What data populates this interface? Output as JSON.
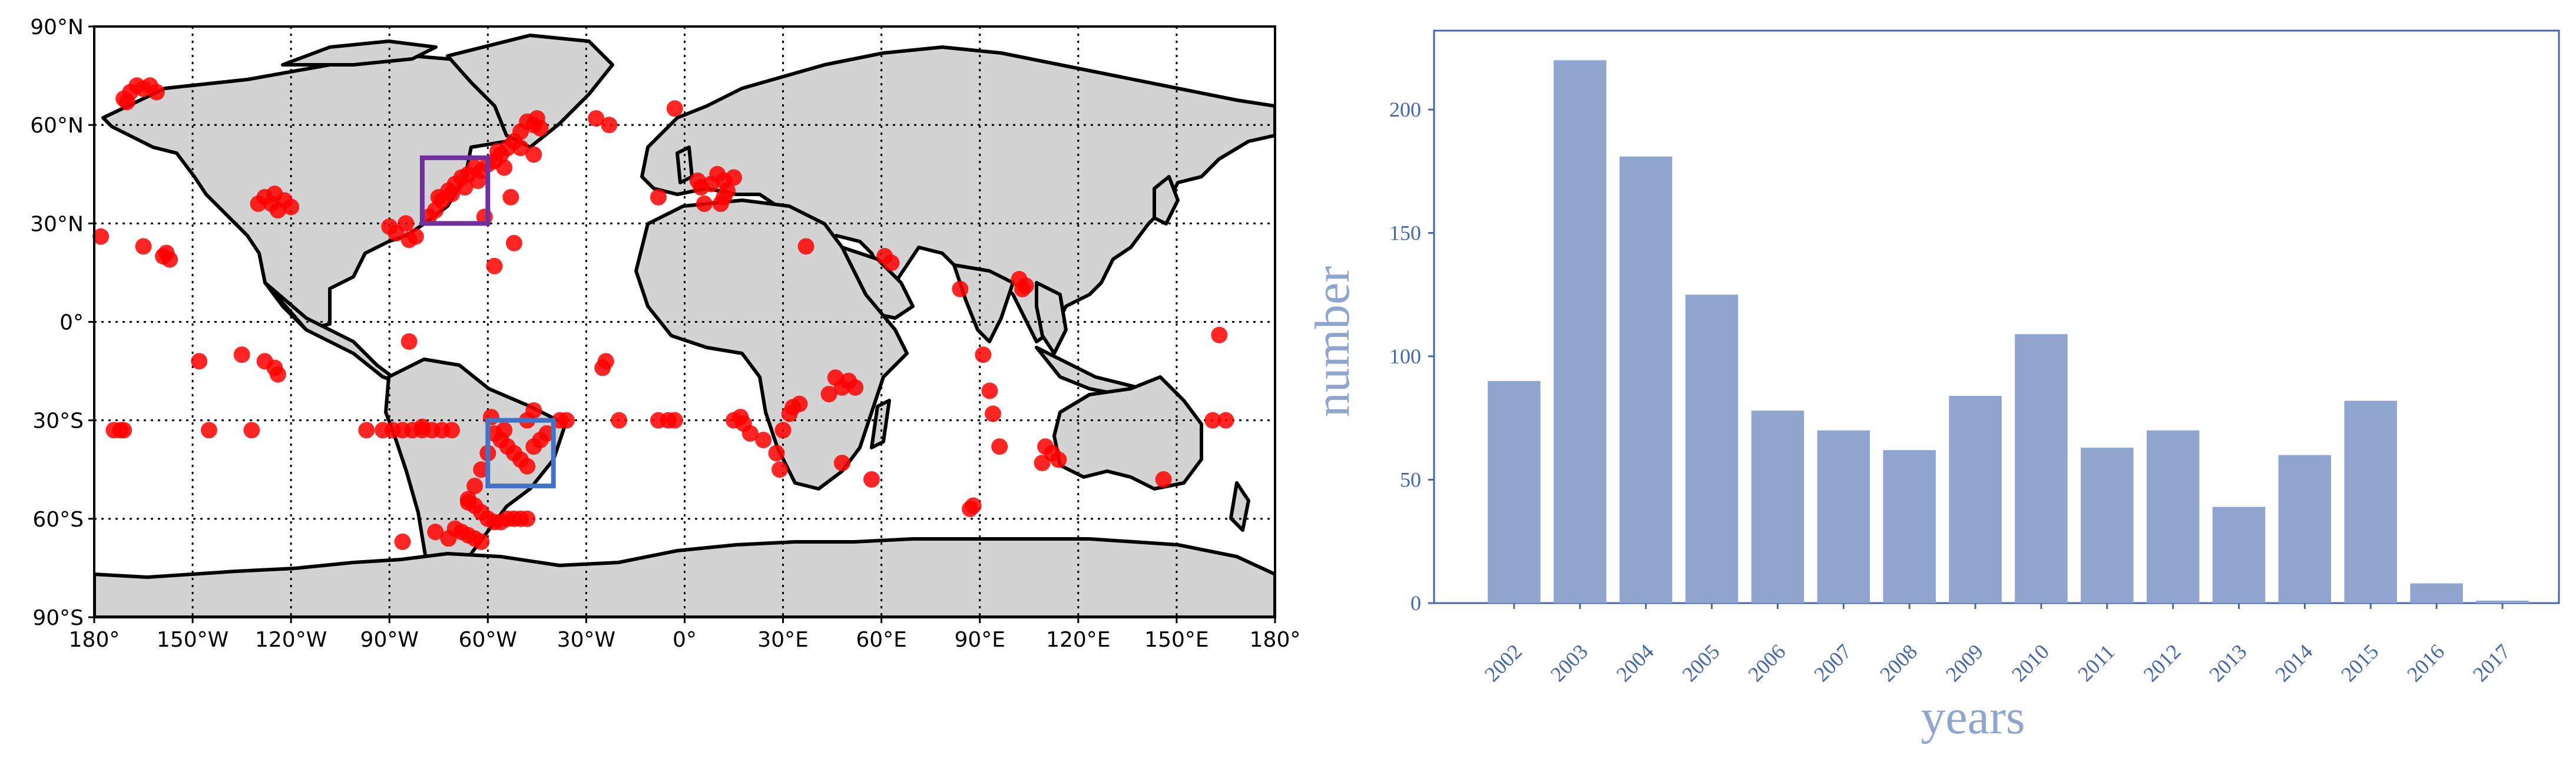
{
  "colors": {
    "land": "#d3d3d3",
    "coast": "#000000",
    "points": "#ff0000",
    "purple_box": "#7030a0",
    "blue_box": "#4472c4",
    "bar_fill": "#8fa5cf",
    "bar_axis": "#4466aa",
    "bar_label": "#8fa5cf"
  },
  "chart_data": [
    {
      "type": "scatter",
      "projection": "equirectangular",
      "grid": true,
      "x_ticks": [
        "180°",
        "150°W",
        "120°W",
        "90°W",
        "60°W",
        "30°W",
        "0°",
        "30°E",
        "60°E",
        "90°E",
        "120°E",
        "150°E",
        "180°"
      ],
      "y_ticks": [
        "90°N",
        "60°N",
        "30°N",
        "0°",
        "30°S",
        "60°S",
        "90°S"
      ],
      "xlim": [
        -180,
        180
      ],
      "ylim": [
        -90,
        90
      ],
      "boxes": [
        {
          "color": "purple",
          "lon": [
            -80,
            -60
          ],
          "lat": [
            30,
            50
          ]
        },
        {
          "color": "blue",
          "lon": [
            -60,
            -40
          ],
          "lat": [
            -50,
            -30
          ]
        }
      ],
      "points_lonlat": [
        [
          -171,
          68
        ],
        [
          -169,
          70
        ],
        [
          -167,
          72
        ],
        [
          -165,
          71
        ],
        [
          -163,
          72
        ],
        [
          -161,
          70
        ],
        [
          -170,
          67
        ],
        [
          -178,
          26
        ],
        [
          -165,
          23
        ],
        [
          -158,
          21
        ],
        [
          -157,
          19
        ],
        [
          -159,
          20
        ],
        [
          -130,
          36
        ],
        [
          -128,
          38
        ],
        [
          -126,
          36
        ],
        [
          -124,
          34
        ],
        [
          -122,
          37
        ],
        [
          -120,
          35
        ],
        [
          -125,
          39
        ],
        [
          -90,
          29
        ],
        [
          -88,
          27
        ],
        [
          -84,
          25
        ],
        [
          -82,
          26
        ],
        [
          -85,
          30
        ],
        [
          -78,
          32
        ],
        [
          -76,
          34
        ],
        [
          -74,
          37
        ],
        [
          -72,
          40
        ],
        [
          -70,
          42
        ],
        [
          -68,
          44
        ],
        [
          -66,
          45
        ],
        [
          -64,
          47
        ],
        [
          -62,
          46
        ],
        [
          -60,
          48
        ],
        [
          -58,
          49
        ],
        [
          -56,
          51
        ],
        [
          -54,
          53
        ],
        [
          -52,
          55
        ],
        [
          -50,
          58
        ],
        [
          -48,
          61
        ],
        [
          -46,
          60
        ],
        [
          -44,
          59
        ],
        [
          -55,
          47
        ],
        [
          -75,
          38
        ],
        [
          -71,
          39
        ],
        [
          -67,
          41
        ],
        [
          -63,
          43
        ],
        [
          -61,
          32
        ],
        [
          -57,
          52
        ],
        [
          -50,
          53
        ],
        [
          -46,
          51
        ],
        [
          -53,
          38
        ],
        [
          -52,
          24
        ],
        [
          -58,
          17
        ],
        [
          -45,
          62
        ],
        [
          -27,
          62
        ],
        [
          -23,
          60
        ],
        [
          -3,
          65
        ],
        [
          -8,
          38
        ],
        [
          5,
          41
        ],
        [
          8,
          42
        ],
        [
          10,
          45
        ],
        [
          12,
          43
        ],
        [
          13,
          40
        ],
        [
          15,
          44
        ],
        [
          6,
          36
        ],
        [
          12,
          38
        ],
        [
          4,
          43
        ],
        [
          11,
          36
        ],
        [
          -135,
          -10
        ],
        [
          -128,
          -12
        ],
        [
          -125,
          -14
        ],
        [
          -124,
          -16
        ],
        [
          -148,
          -12
        ],
        [
          -174,
          -33
        ],
        [
          -172,
          -33
        ],
        [
          -171,
          -33
        ],
        [
          -145,
          -33
        ],
        [
          -132,
          -33
        ],
        [
          -97,
          -33
        ],
        [
          -92,
          -33
        ],
        [
          -89,
          -33
        ],
        [
          -86,
          -33
        ],
        [
          -83,
          -33
        ],
        [
          -80,
          -33
        ],
        [
          -77,
          -33
        ],
        [
          -74,
          -33
        ],
        [
          -71,
          -33
        ],
        [
          -80,
          -32
        ],
        [
          -84,
          -6
        ],
        [
          -58,
          -34
        ],
        [
          -56,
          -36
        ],
        [
          -54,
          -38
        ],
        [
          -52,
          -40
        ],
        [
          -50,
          -42
        ],
        [
          -48,
          -44
        ],
        [
          -46,
          -38
        ],
        [
          -44,
          -36
        ],
        [
          -42,
          -34
        ],
        [
          -60,
          -40
        ],
        [
          -62,
          -45
        ],
        [
          -64,
          -50
        ],
        [
          -66,
          -54
        ],
        [
          -59,
          -29
        ],
        [
          -55,
          -33
        ],
        [
          -48,
          -30
        ],
        [
          -46,
          -27
        ],
        [
          -38,
          -30
        ],
        [
          -36,
          -30
        ],
        [
          -66,
          -55
        ],
        [
          -64,
          -56
        ],
        [
          -62,
          -58
        ],
        [
          -60,
          -60
        ],
        [
          -58,
          -61
        ],
        [
          -56,
          -61
        ],
        [
          -54,
          -60
        ],
        [
          -52,
          -60
        ],
        [
          -50,
          -60
        ],
        [
          -48,
          -60
        ],
        [
          -70,
          -63
        ],
        [
          -68,
          -64
        ],
        [
          -66,
          -65
        ],
        [
          -64,
          -66
        ],
        [
          -62,
          -67
        ],
        [
          -72,
          -66
        ],
        [
          -86,
          -67
        ],
        [
          -76,
          -64
        ],
        [
          -24,
          -12
        ],
        [
          -25,
          -14
        ],
        [
          -20,
          -30
        ],
        [
          -8,
          -30
        ],
        [
          -5,
          -30
        ],
        [
          -3,
          -30
        ],
        [
          17,
          -29
        ],
        [
          18,
          -31
        ],
        [
          20,
          -34
        ],
        [
          15,
          -30
        ],
        [
          24,
          -36
        ],
        [
          30,
          -33
        ],
        [
          32,
          -28
        ],
        [
          33,
          -26
        ],
        [
          35,
          -25
        ],
        [
          29,
          -45
        ],
        [
          28,
          -40
        ],
        [
          46,
          -17
        ],
        [
          44,
          -22
        ],
        [
          48,
          -20
        ],
        [
          52,
          -20
        ],
        [
          50,
          -18
        ],
        [
          48,
          -43
        ],
        [
          57,
          -48
        ],
        [
          37,
          23
        ],
        [
          61,
          20
        ],
        [
          63,
          18
        ],
        [
          84,
          10
        ],
        [
          102,
          13
        ],
        [
          104,
          11
        ],
        [
          103,
          10
        ],
        [
          91,
          -10
        ],
        [
          93,
          -21
        ],
        [
          94,
          -28
        ],
        [
          96,
          -38
        ],
        [
          88,
          -56
        ],
        [
          87,
          -57
        ],
        [
          110,
          -38
        ],
        [
          112,
          -40
        ],
        [
          114,
          -42
        ],
        [
          109,
          -43
        ],
        [
          146,
          -48
        ],
        [
          163,
          -4
        ],
        [
          165,
          -30
        ],
        [
          161,
          -30
        ]
      ]
    },
    {
      "type": "bar",
      "categories": [
        "2002",
        "2003",
        "2004",
        "2005",
        "2006",
        "2007",
        "2008",
        "2009",
        "2010",
        "2011",
        "2012",
        "2013",
        "2014",
        "2015",
        "2016",
        "2017"
      ],
      "values": [
        90,
        220,
        181,
        125,
        78,
        70,
        62,
        84,
        109,
        63,
        70,
        39,
        60,
        82,
        8,
        1
      ],
      "xlabel": "years",
      "ylabel": "number",
      "ylim": [
        0,
        232
      ],
      "y_ticks": [
        0,
        50,
        100,
        150,
        200
      ],
      "grid": false
    }
  ]
}
